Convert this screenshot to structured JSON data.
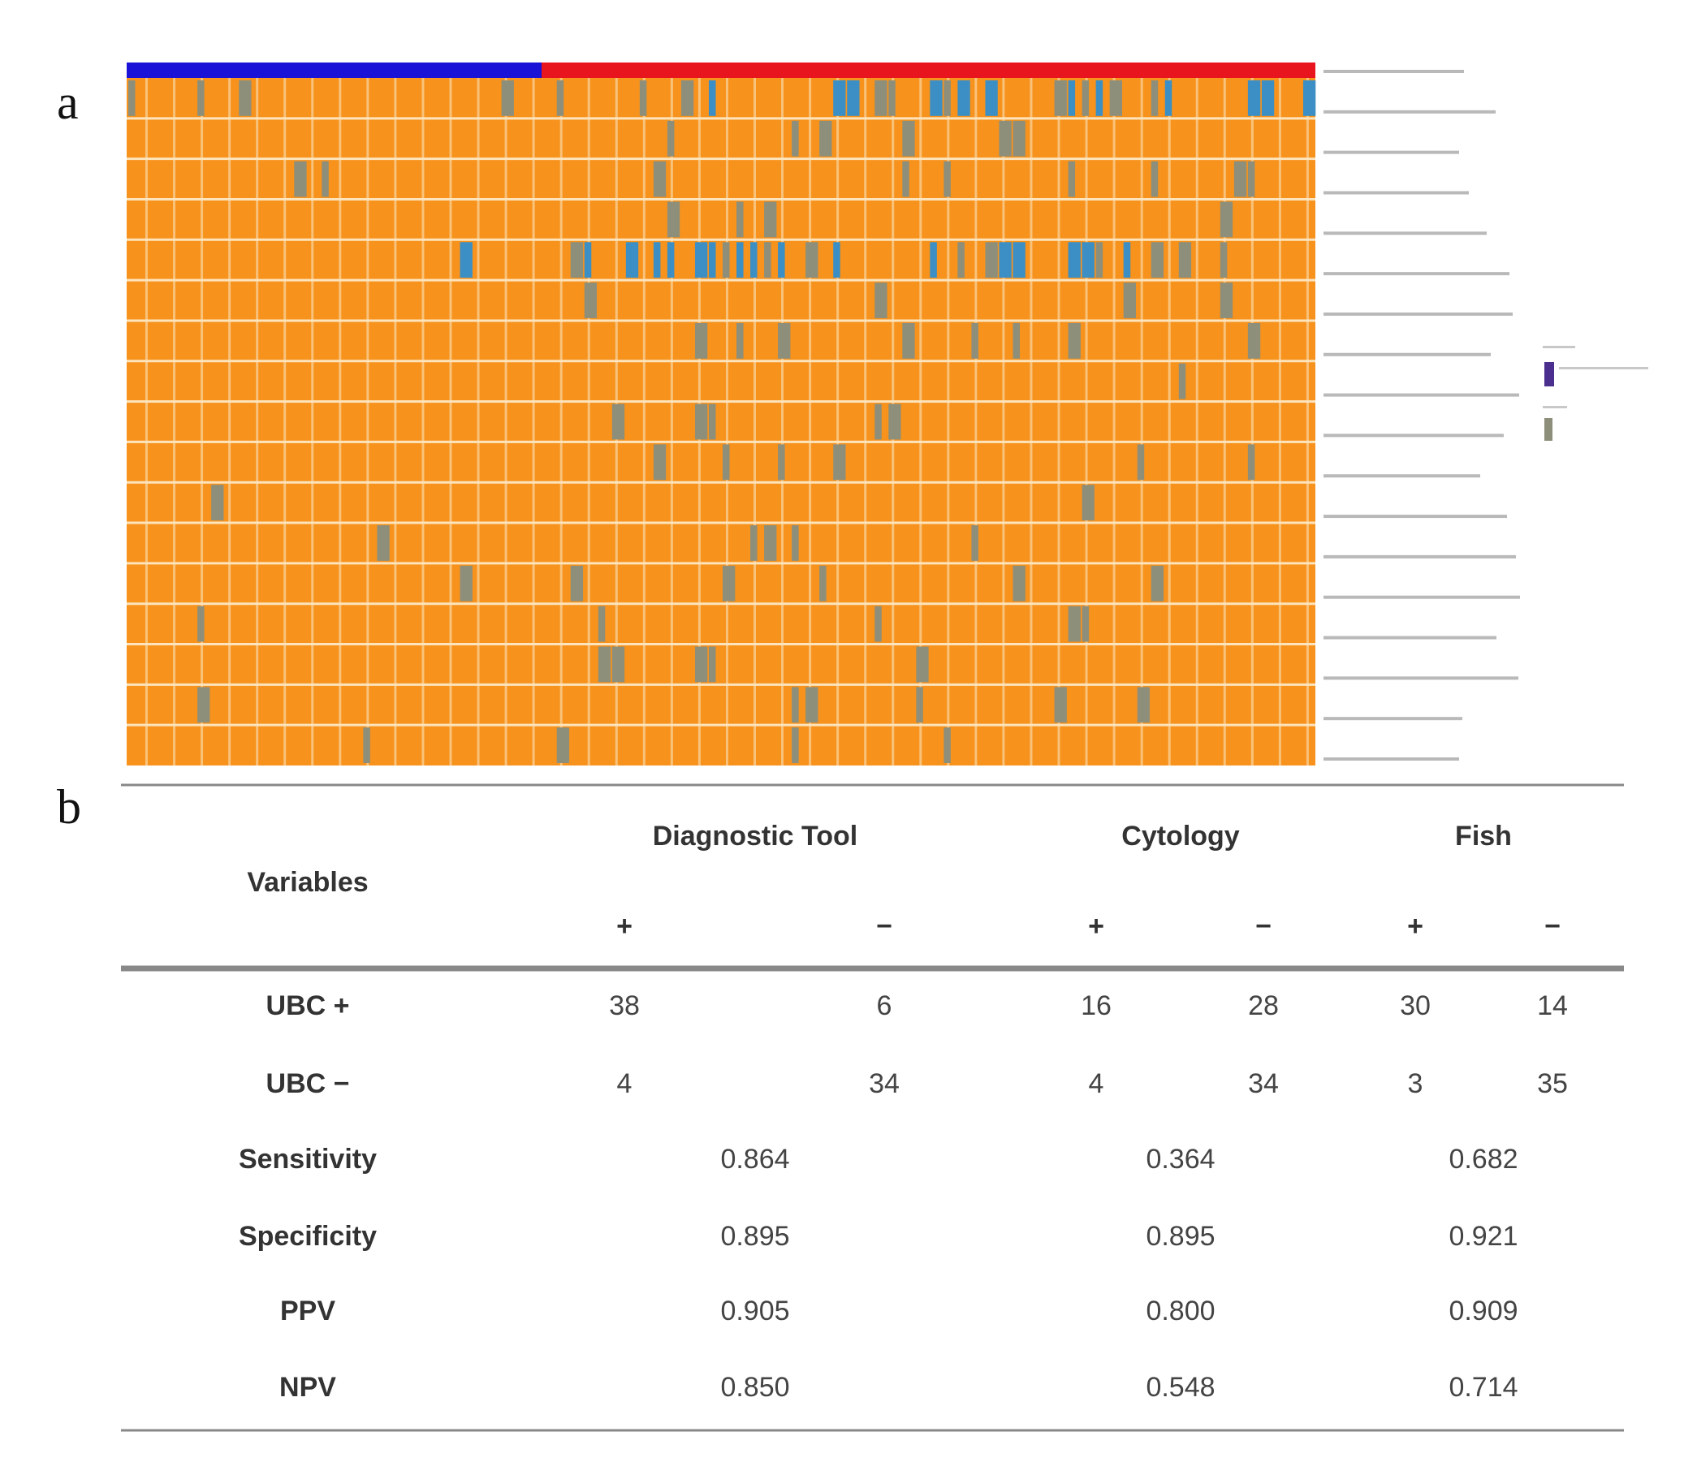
{
  "panel_labels": [
    "a",
    "b"
  ],
  "table": {
    "header": {
      "variables": "Variables",
      "groups": [
        "Diagnostic Tool",
        "Cytology",
        "Fish"
      ],
      "signs": [
        "+",
        "−",
        "+",
        "−",
        "+",
        "−"
      ]
    },
    "rows": [
      {
        "label": "UBC +",
        "cells": [
          38,
          6,
          16,
          28,
          30,
          14
        ]
      },
      {
        "label": "UBC −",
        "cells": [
          4,
          34,
          4,
          34,
          3,
          35
        ]
      },
      {
        "label": "Sensitivity",
        "cells": [
          0.864,
          0.364,
          0.682
        ]
      },
      {
        "label": "Specificity",
        "cells": [
          0.895,
          0.895,
          0.921
        ]
      },
      {
        "label": "PPV",
        "cells": [
          0.905,
          "0.800",
          0.909
        ]
      },
      {
        "label": "NPV",
        "cells": [
          "0.850",
          0.548,
          0.714
        ]
      }
    ]
  }
}
